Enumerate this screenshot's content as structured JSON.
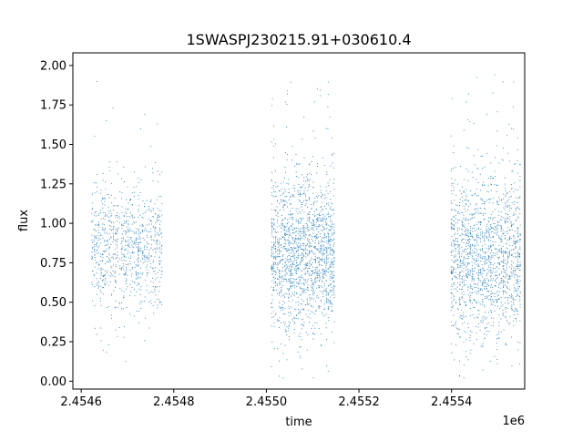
{
  "chart_data": {
    "type": "scatter",
    "title": "1SWASPJ230215.91+030610.4",
    "xlabel": "time",
    "ylabel": "flux",
    "x_offset_label": "1e6",
    "xlim": [
      2454582,
      2455558
    ],
    "ylim": [
      -0.05,
      2.08
    ],
    "x_ticks": [
      2454600,
      2454800,
      2455000,
      2455200,
      2455400
    ],
    "x_tick_labels": [
      "2.4546",
      "2.4548",
      "2.4550",
      "2.4552",
      "2.4554"
    ],
    "y_ticks": [
      0.0,
      0.25,
      0.5,
      0.75,
      1.0,
      1.25,
      1.5,
      1.75,
      2.0
    ],
    "y_tick_labels": [
      "0.00",
      "0.25",
      "0.50",
      "0.75",
      "1.00",
      "1.25",
      "1.50",
      "1.75",
      "2.00"
    ],
    "grid": false,
    "legend": "none",
    "series": [
      {
        "color": "#1f77b4",
        "clusters": [
          {
            "x_start": 2454622,
            "x_end": 2454776,
            "center": 0.85,
            "spread": 0.2,
            "points": 900
          },
          {
            "x_start": 2455010,
            "x_end": 2455148,
            "center": 0.82,
            "spread": 0.24,
            "points": 1700
          },
          {
            "x_start": 2455398,
            "x_end": 2455550,
            "center": 0.8,
            "spread": 0.26,
            "points": 1600
          }
        ]
      }
    ]
  }
}
